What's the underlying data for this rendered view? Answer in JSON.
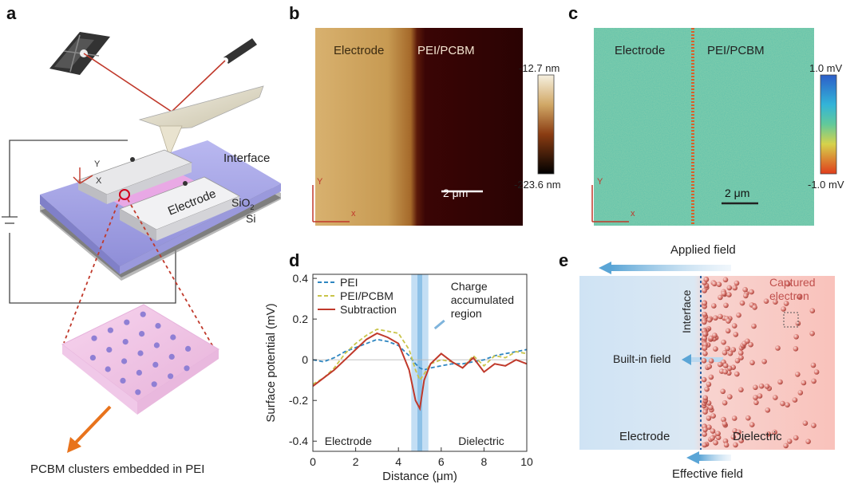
{
  "panel_letters": [
    "a",
    "b",
    "c",
    "d",
    "e"
  ],
  "panel_a": {
    "interface_label": "Interface",
    "axis_y": "Y",
    "axis_x": "X",
    "electrode_label": "Electrode",
    "sio2_label": "SiO",
    "sio2_sub": "2",
    "si_label": "Si",
    "caption": "PCBM clusters embedded in PEI"
  },
  "panel_b": {
    "left_label": "Electrode",
    "right_label": "PEI/PCBM",
    "scale_max": "-12.7 nm",
    "scale_min": "-223.6 nm",
    "scalebar": "2 μm",
    "axis_y": "Y",
    "axis_x": "x"
  },
  "panel_c": {
    "left_label": "Electrode",
    "right_label": "PEI/PCBM",
    "scale_max": "1.0 mV",
    "scale_min": "-1.0 mV",
    "scalebar": "2 μm",
    "axis_y": "Y",
    "axis_x": "x"
  },
  "panel_e": {
    "applied_field": "Applied field",
    "interface": "Interface",
    "captured_electron": "Captured electron",
    "built_in_field": "Built-in field",
    "electrode": "Electrode",
    "dielectric": "Dielectric",
    "effective_field": "Effective field",
    "colors": {
      "electrode_bg": "#cfe3f4",
      "dielectric_bg": "#f9c8c2",
      "electron": "#c0504d"
    }
  },
  "chart_data": {
    "type": "line",
    "xlabel": "Distance (μm)",
    "ylabel": "Surface potential (mV)",
    "xlim": [
      0,
      10
    ],
    "ylim": [
      -0.45,
      0.42
    ],
    "xticks": [
      0,
      2,
      4,
      6,
      8,
      10
    ],
    "yticks": [
      0.4,
      0.2,
      0,
      -0.2,
      -0.4
    ],
    "ytick_labels": [
      "0.4",
      "0.2",
      "0",
      "-0.2",
      "-0.4"
    ],
    "annotation": "Charge accumulated region",
    "highlight_x": [
      4.6,
      5.4
    ],
    "region_labels": [
      "Electrode",
      "Dielectric"
    ],
    "legend_position": "top-left",
    "series": [
      {
        "name": "PEI",
        "color": "#2e86c1",
        "dash": true,
        "x": [
          0,
          0.5,
          1,
          1.5,
          2,
          2.5,
          3,
          3.5,
          4,
          4.5,
          4.8,
          5,
          5.2,
          5.5,
          6,
          6.5,
          7,
          7.5,
          8,
          8.5,
          9,
          9.5,
          10
        ],
        "y": [
          0.0,
          -0.01,
          0.01,
          0.04,
          0.06,
          0.08,
          0.1,
          0.09,
          0.07,
          0.02,
          -0.02,
          -0.04,
          -0.05,
          -0.04,
          -0.03,
          -0.02,
          -0.02,
          -0.01,
          0.0,
          0.02,
          0.03,
          0.04,
          0.05
        ]
      },
      {
        "name": "PEI/PCBM",
        "color": "#c9c44a",
        "dash": true,
        "x": [
          0,
          0.5,
          1,
          1.5,
          2,
          2.5,
          3,
          3.5,
          4,
          4.5,
          4.8,
          5,
          5.2,
          5.5,
          6,
          6.5,
          7,
          7.5,
          8,
          8.5,
          9,
          9.5,
          10
        ],
        "y": [
          -0.12,
          -0.09,
          -0.04,
          0.03,
          0.08,
          0.12,
          0.15,
          0.14,
          0.13,
          0.05,
          -0.05,
          -0.1,
          -0.07,
          -0.02,
          0.0,
          -0.01,
          -0.04,
          0.02,
          -0.03,
          0.02,
          0.01,
          0.04,
          0.03
        ]
      },
      {
        "name": "Subtraction",
        "color": "#c0392b",
        "dash": false,
        "x": [
          0,
          0.5,
          1,
          1.5,
          2,
          2.5,
          3,
          3.5,
          4,
          4.5,
          4.8,
          5,
          5.2,
          5.5,
          6,
          6.5,
          7,
          7.5,
          8,
          8.5,
          9,
          9.5,
          10
        ],
        "y": [
          -0.13,
          -0.09,
          -0.05,
          0.0,
          0.05,
          0.1,
          0.13,
          0.11,
          0.08,
          -0.05,
          -0.2,
          -0.24,
          -0.1,
          -0.02,
          0.03,
          -0.01,
          -0.04,
          0.01,
          -0.06,
          -0.02,
          -0.03,
          0.0,
          -0.02
        ]
      }
    ]
  }
}
